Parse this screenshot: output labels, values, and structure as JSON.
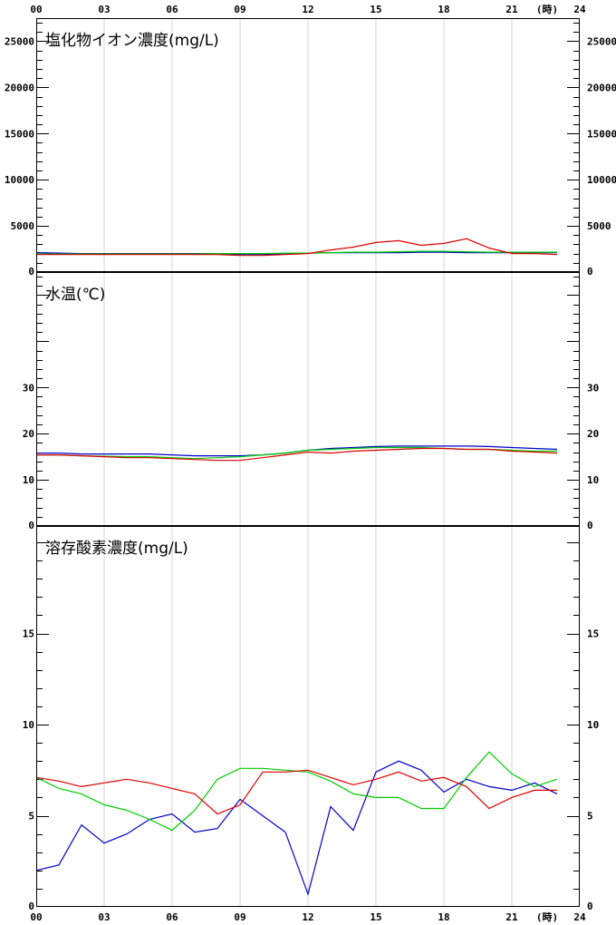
{
  "time_axis": {
    "labels": [
      "00",
      "03",
      "06",
      "09",
      "12",
      "15",
      "18",
      "21",
      "24"
    ],
    "unit_label": "(時)"
  },
  "series_colors": [
    "#0000cc",
    "#00cc00",
    "#dd0000"
  ],
  "chart_data": [
    {
      "type": "line",
      "title": "塩化物イオン濃度(mg/L)",
      "ylim": [
        0,
        27500
      ],
      "y_ticks": [
        0,
        5000,
        10000,
        15000,
        20000,
        25000
      ],
      "grid": "vertical",
      "x": [
        0,
        1,
        2,
        3,
        4,
        5,
        6,
        7,
        8,
        9,
        10,
        11,
        12,
        13,
        14,
        15,
        16,
        17,
        18,
        19,
        20,
        21,
        22,
        23
      ],
      "series": [
        {
          "color": "#0000cc",
          "values": [
            2100,
            2050,
            2000,
            2000,
            2000,
            2000,
            2000,
            2000,
            2000,
            1900,
            1900,
            2000,
            2050,
            2100,
            2100,
            2100,
            2100,
            2150,
            2150,
            2100,
            2100,
            2100,
            2100,
            2100
          ]
        },
        {
          "color": "#00cc00",
          "values": [
            1950,
            1950,
            1950,
            1950,
            1950,
            1950,
            1950,
            1950,
            2000,
            2000,
            2000,
            2050,
            2050,
            2100,
            2150,
            2150,
            2200,
            2250,
            2250,
            2200,
            2150,
            2150,
            2150,
            2150
          ]
        },
        {
          "color": "#dd0000",
          "values": [
            1900,
            1900,
            1900,
            1900,
            1900,
            1900,
            1900,
            1900,
            1900,
            1800,
            1800,
            1900,
            2000,
            2400,
            2700,
            3200,
            3400,
            2900,
            3100,
            3600,
            2600,
            2000,
            2000,
            1900
          ]
        }
      ]
    },
    {
      "type": "line",
      "title": "水温(℃)",
      "ylim": [
        0,
        55
      ],
      "y_ticks": [
        0,
        10,
        20,
        30
      ],
      "grid": "vertical",
      "x": [
        0,
        1,
        2,
        3,
        4,
        5,
        6,
        7,
        8,
        9,
        10,
        11,
        12,
        13,
        14,
        15,
        16,
        17,
        18,
        19,
        20,
        21,
        22,
        23
      ],
      "series": [
        {
          "color": "#0000cc",
          "values": [
            15.8,
            15.8,
            15.6,
            15.6,
            15.6,
            15.6,
            15.4,
            15.2,
            15.2,
            15.2,
            15.4,
            15.8,
            16.4,
            16.8,
            17.0,
            17.2,
            17.3,
            17.3,
            17.3,
            17.3,
            17.2,
            17.0,
            16.8,
            16.6
          ]
        },
        {
          "color": "#00cc00",
          "values": [
            15.4,
            15.4,
            15.2,
            15.1,
            15.0,
            15.0,
            14.8,
            14.6,
            14.8,
            15.0,
            15.4,
            15.8,
            16.4,
            16.6,
            16.8,
            17.0,
            17.0,
            17.0,
            16.8,
            16.6,
            16.6,
            16.4,
            16.2,
            16.2
          ]
        },
        {
          "color": "#dd0000",
          "values": [
            15.4,
            15.4,
            15.2,
            15.0,
            14.8,
            14.8,
            14.6,
            14.4,
            14.2,
            14.2,
            14.8,
            15.4,
            16.0,
            15.8,
            16.2,
            16.4,
            16.6,
            16.8,
            16.8,
            16.6,
            16.6,
            16.2,
            16.0,
            15.8
          ]
        }
      ]
    },
    {
      "type": "line",
      "title": "溶存酸素濃度(mg/L)",
      "ylim": [
        0,
        20.9
      ],
      "y_ticks": [
        0,
        5,
        10,
        15
      ],
      "grid": "vertical",
      "x": [
        0,
        1,
        2,
        3,
        4,
        5,
        6,
        7,
        8,
        9,
        10,
        11,
        12,
        13,
        14,
        15,
        16,
        17,
        18,
        19,
        20,
        21,
        22,
        23
      ],
      "series": [
        {
          "color": "#0000cc",
          "values": [
            2.0,
            2.3,
            4.5,
            3.5,
            4.0,
            4.8,
            5.1,
            4.1,
            4.3,
            5.9,
            5.0,
            4.1,
            0.7,
            5.5,
            4.2,
            7.4,
            8.0,
            7.5,
            6.3,
            7.0,
            6.6,
            6.4,
            6.8,
            6.2
          ]
        },
        {
          "color": "#00cc00",
          "values": [
            7.1,
            6.5,
            6.2,
            5.6,
            5.3,
            4.8,
            4.2,
            5.3,
            7.0,
            7.6,
            7.6,
            7.5,
            7.4,
            6.9,
            6.2,
            6.0,
            6.0,
            5.4,
            5.4,
            7.1,
            8.5,
            7.3,
            6.6,
            7.0
          ]
        },
        {
          "color": "#dd0000",
          "values": [
            7.1,
            6.9,
            6.6,
            6.8,
            7.0,
            6.8,
            6.5,
            6.2,
            5.1,
            5.6,
            7.4,
            7.4,
            7.5,
            7.1,
            6.7,
            7.0,
            7.4,
            6.9,
            7.1,
            6.6,
            5.4,
            6.0,
            6.4,
            6.4
          ]
        }
      ]
    }
  ]
}
